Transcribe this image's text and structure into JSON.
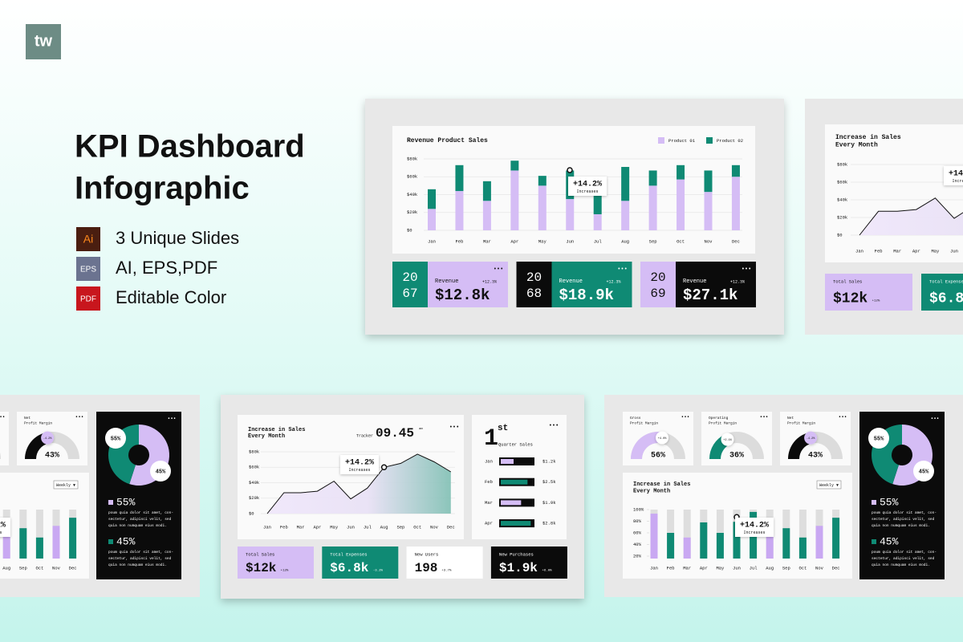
{
  "logo": "tw",
  "header": {
    "title_line1": "KPI Dashboard",
    "title_line2": "Infographic"
  },
  "features": [
    {
      "icon": "Ai",
      "text": "3 Unique Slides"
    },
    {
      "icon": "EPS",
      "text": "AI, EPS,PDF"
    },
    {
      "icon": "PDF",
      "text": "Editable Color"
    }
  ],
  "menu_icon": "•••",
  "slide_revenue": {
    "chart": {
      "type": "bar",
      "title": "Revenue Product Sales",
      "categories": [
        "Jan",
        "Feb",
        "Mar",
        "Apr",
        "May",
        "Jun",
        "Jul",
        "Aug",
        "Sep",
        "Oct",
        "Nov",
        "Dec"
      ],
      "series": [
        {
          "name": "Product 01",
          "color": "#d5bdf5",
          "values": [
            24,
            44,
            33,
            67,
            50,
            35,
            18,
            33,
            50,
            57,
            43,
            60
          ]
        },
        {
          "name": "Product 02",
          "color": "#0f8a74",
          "values": [
            22,
            29,
            22,
            11,
            11,
            32,
            21,
            38,
            17,
            16,
            24,
            13
          ]
        }
      ],
      "stacked": true,
      "ylim": [
        0,
        80
      ],
      "yticks": [
        {
          "value": 0,
          "label": "$0"
        },
        {
          "value": 20,
          "label": "$20k"
        },
        {
          "value": 40,
          "label": "$40k"
        },
        {
          "value": 60,
          "label": "$60k"
        },
        {
          "value": 80,
          "label": "$80k"
        }
      ],
      "annotation": {
        "text": "+14.2%",
        "sub": "Increases"
      }
    },
    "cards": [
      {
        "year": [
          "20",
          "67"
        ],
        "label": "Revenue",
        "change": "+12.3%",
        "value": "$12.8k"
      },
      {
        "year": [
          "20",
          "68"
        ],
        "label": "Revenue",
        "change": "+12.3%",
        "value": "$18.9k"
      },
      {
        "year": [
          "20",
          "69"
        ],
        "label": "Revenue",
        "change": "+12.3%",
        "value": "$27.1k"
      }
    ]
  },
  "slide_sales": {
    "chart": {
      "type": "line",
      "title": [
        "Increase in Sales",
        "Every Month"
      ],
      "tracker_label": "Tracker",
      "time": "09.45",
      "time_suffix": "am",
      "categories": [
        "Jan",
        "Feb",
        "Mar",
        "Apr",
        "May",
        "Jun",
        "Jul",
        "Aug",
        "Sep",
        "Oct",
        "Nov",
        "Dec"
      ],
      "values": [
        0,
        27,
        27,
        29,
        42,
        19,
        33,
        60,
        65,
        77,
        67,
        54
      ],
      "ylim": [
        0,
        80
      ],
      "yticks": [
        {
          "value": 0,
          "label": "$0"
        },
        {
          "value": 20,
          "label": "$20k"
        },
        {
          "value": 40,
          "label": "$40k"
        },
        {
          "value": 60,
          "label": "$60k"
        },
        {
          "value": 80,
          "label": "$80k"
        }
      ],
      "annotation": {
        "text": "+14.2%",
        "sub": "Increases"
      }
    },
    "quarter": {
      "rank": "1",
      "rank_suffix": "st",
      "title": "Quarter Sales",
      "categories": [
        "Jan",
        "Feb",
        "Mar",
        "Apr"
      ],
      "values": [
        1.2,
        2.5,
        1.9,
        2.8
      ],
      "value_labels": [
        "$1.2k",
        "$2.5k",
        "$1.9k",
        "$2.8k"
      ],
      "xlim": [
        0,
        3
      ]
    },
    "kpis": [
      {
        "label": "Total Sales",
        "value": "$12k",
        "change": "+12%"
      },
      {
        "label": "Total Expenses",
        "value": "$6.8k",
        "change": "-3.2%"
      },
      {
        "label": "New Users",
        "value": "198",
        "change": "+3.7%"
      },
      {
        "label": "New Purchases",
        "value": "$1.9k",
        "change": "+6.0%"
      }
    ]
  },
  "slide_margins": {
    "gauges": [
      {
        "title": [
          "Gross",
          "Profit Margin"
        ],
        "value": 56,
        "value_label": "56%",
        "change": "+4.0%"
      },
      {
        "title": [
          "Operating",
          "Profit Margin"
        ],
        "value": 36,
        "value_label": "36%",
        "change": "+2.1%"
      },
      {
        "title": [
          "Net",
          "Profit Margin"
        ],
        "value": 43,
        "value_label": "43%",
        "change": "-4.2%"
      }
    ],
    "chart": {
      "type": "bar",
      "title": [
        "Increase in Sales",
        "Every Month"
      ],
      "filter": "Weekly ▼",
      "categories": [
        "Jan",
        "Feb",
        "Mar",
        "Apr",
        "May",
        "Jun",
        "Jul",
        "Aug",
        "Sep",
        "Oct",
        "Nov",
        "Dec"
      ],
      "values": [
        93,
        60,
        52,
        78,
        60,
        79,
        96,
        72,
        68,
        52,
        72,
        86
      ],
      "bar_colors": [
        "#c9a8f2",
        "#0f8a74",
        "#c9a8f2",
        "#0f8a74",
        "#0f8a74",
        "#0f8a74",
        "#0f8a74",
        "#c9a8f2",
        "#0f8a74",
        "#0f8a74",
        "#c9a8f2",
        "#0f8a74"
      ],
      "ylim": [
        20,
        100
      ],
      "yticks": [
        {
          "value": 20,
          "label": "20%"
        },
        {
          "value": 40,
          "label": "40%"
        },
        {
          "value": 60,
          "label": "60%"
        },
        {
          "value": 80,
          "label": "80%"
        },
        {
          "value": 100,
          "label": "100%"
        }
      ],
      "annotation": {
        "text": "+14.2%",
        "sub": "Increases"
      }
    },
    "donut": {
      "type": "pie",
      "values": [
        55,
        45
      ],
      "value_labels": [
        "55%",
        "45%"
      ],
      "colors": [
        "#d5bdf5",
        "#0f8a74"
      ],
      "text_lines": [
        "poum quia dolor sit amet, con-",
        "sectetur, adipisci velit, sed",
        "quia non numquam eius modi."
      ]
    }
  }
}
